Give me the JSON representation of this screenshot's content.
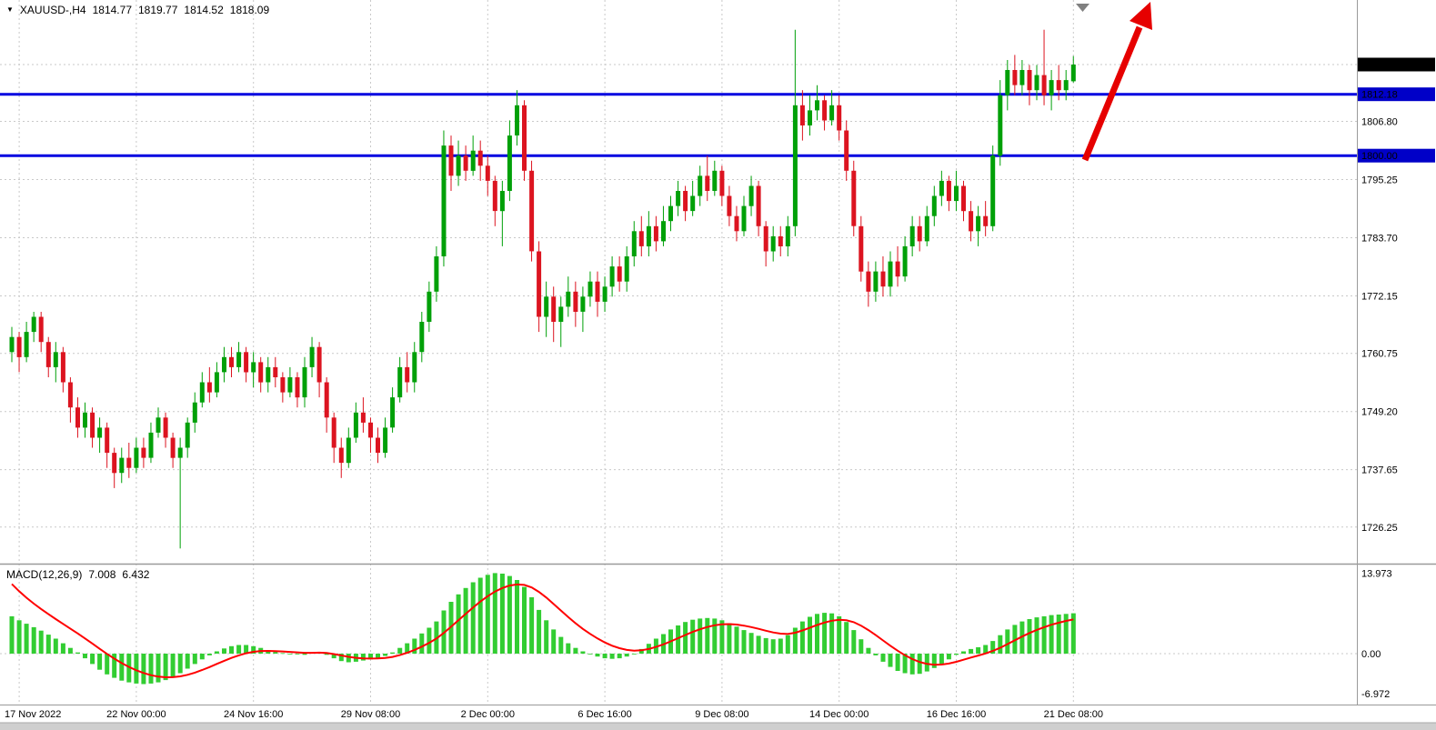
{
  "header": {
    "dropdown_icon": "▼",
    "symbol_period": "XAUUSD-,H4",
    "open": "1814.77",
    "high": "1819.77",
    "low": "1814.52",
    "close": "1818.09"
  },
  "macd_panel": {
    "label": "MACD(12,26,9)",
    "main_value": "7.008",
    "signal_value": "6.432",
    "scale_max": "13.973",
    "scale_zero": "0.00",
    "scale_min": "-6.972"
  },
  "price_axis": {
    "current": "1818.09",
    "levels": [
      "1812.18",
      "1800.00"
    ],
    "grid_labels": [
      "1806.80",
      "1795.25",
      "1783.70",
      "1772.15",
      "1760.75",
      "1749.20",
      "1737.65",
      "1726.25"
    ]
  },
  "colors": {
    "bull": "#00a008",
    "bear": "#dc1420",
    "macd_histogram": "#32cd32",
    "macd_signal": "#ff0000",
    "level_line": "#0000e0",
    "current_tag_bg": "#000000",
    "level_tag_bg": "#0000c8",
    "arrow": "#e60000",
    "grid": "#c9c9c9"
  },
  "chart_data": {
    "type": "candlestick",
    "title": "XAUUSD-,H4",
    "ohlc_header": [
      1814.77,
      1819.77,
      1814.52,
      1818.09
    ],
    "current_price": 1818.09,
    "horizontal_levels": [
      1812.18,
      1800.0
    ],
    "price_grid": [
      1806.8,
      1795.25,
      1783.7,
      1772.15,
      1760.75,
      1749.2,
      1737.65,
      1726.25
    ],
    "ylim_main": [
      1719,
      1831
    ],
    "ylim_macd": [
      -8.5,
      15.3
    ],
    "time_labels": [
      {
        "bar": 1,
        "text": "17 Nov 2022"
      },
      {
        "bar": 17,
        "text": "22 Nov 00:00"
      },
      {
        "bar": 33,
        "text": "24 Nov 16:00"
      },
      {
        "bar": 49,
        "text": "29 Nov 08:00"
      },
      {
        "bar": 65,
        "text": "2 Dec 00:00"
      },
      {
        "bar": 81,
        "text": "6 Dec 16:00"
      },
      {
        "bar": 97,
        "text": "9 Dec 08:00"
      },
      {
        "bar": 113,
        "text": "14 Dec 00:00"
      },
      {
        "bar": 129,
        "text": "16 Dec 16:00"
      },
      {
        "bar": 145,
        "text": "21 Dec 08:00"
      }
    ],
    "candles": [
      [
        1761,
        1766,
        1759,
        1764
      ],
      [
        1764,
        1765,
        1757,
        1760
      ],
      [
        1760,
        1767,
        1759,
        1765
      ],
      [
        1765,
        1769,
        1763,
        1768
      ],
      [
        1768,
        1769,
        1761,
        1763
      ],
      [
        1763,
        1764,
        1756,
        1758
      ],
      [
        1758,
        1763,
        1755,
        1761
      ],
      [
        1761,
        1762,
        1753,
        1755
      ],
      [
        1755,
        1756,
        1747,
        1750
      ],
      [
        1750,
        1752,
        1744,
        1746
      ],
      [
        1746,
        1751,
        1744,
        1749
      ],
      [
        1749,
        1750,
        1742,
        1744
      ],
      [
        1744,
        1748,
        1741,
        1746
      ],
      [
        1746,
        1747,
        1738,
        1741
      ],
      [
        1741,
        1742,
        1734,
        1737
      ],
      [
        1737,
        1742,
        1735,
        1740
      ],
      [
        1740,
        1743,
        1736,
        1738
      ],
      [
        1738,
        1744,
        1737,
        1742
      ],
      [
        1742,
        1744,
        1738,
        1740
      ],
      [
        1740,
        1747,
        1739,
        1745
      ],
      [
        1745,
        1750,
        1744,
        1748
      ],
      [
        1748,
        1749,
        1742,
        1744
      ],
      [
        1744,
        1745,
        1738,
        1740
      ],
      [
        1740,
        1744,
        1722,
        1742
      ],
      [
        1742,
        1748,
        1740,
        1747
      ],
      [
        1747,
        1753,
        1745,
        1751
      ],
      [
        1751,
        1757,
        1750,
        1755
      ],
      [
        1755,
        1758,
        1751,
        1753
      ],
      [
        1753,
        1759,
        1752,
        1757
      ],
      [
        1757,
        1762,
        1755,
        1760
      ],
      [
        1760,
        1762,
        1756,
        1758
      ],
      [
        1758,
        1763,
        1757,
        1761
      ],
      [
        1761,
        1762,
        1755,
        1757
      ],
      [
        1757,
        1761,
        1754,
        1759
      ],
      [
        1759,
        1760,
        1753,
        1755
      ],
      [
        1755,
        1760,
        1753,
        1758
      ],
      [
        1758,
        1760,
        1754,
        1756
      ],
      [
        1756,
        1757,
        1751,
        1753
      ],
      [
        1753,
        1758,
        1752,
        1756
      ],
      [
        1756,
        1757,
        1750,
        1752
      ],
      [
        1752,
        1760,
        1750,
        1758
      ],
      [
        1758,
        1764,
        1756,
        1762
      ],
      [
        1762,
        1763,
        1752,
        1755
      ],
      [
        1755,
        1756,
        1745,
        1748
      ],
      [
        1748,
        1749,
        1739,
        1742
      ],
      [
        1742,
        1744,
        1736,
        1739
      ],
      [
        1739,
        1746,
        1738,
        1744
      ],
      [
        1744,
        1751,
        1743,
        1749
      ],
      [
        1749,
        1752,
        1745,
        1747
      ],
      [
        1747,
        1748,
        1741,
        1744
      ],
      [
        1744,
        1746,
        1739,
        1741
      ],
      [
        1741,
        1748,
        1740,
        1746
      ],
      [
        1746,
        1754,
        1745,
        1752
      ],
      [
        1752,
        1760,
        1751,
        1758
      ],
      [
        1758,
        1761,
        1753,
        1755
      ],
      [
        1755,
        1763,
        1753,
        1761
      ],
      [
        1761,
        1769,
        1759,
        1767
      ],
      [
        1767,
        1775,
        1765,
        1773
      ],
      [
        1773,
        1782,
        1771,
        1780
      ],
      [
        1780,
        1805,
        1778,
        1802
      ],
      [
        1802,
        1804,
        1793,
        1796
      ],
      [
        1796,
        1803,
        1794,
        1800
      ],
      [
        1800,
        1802,
        1795,
        1797
      ],
      [
        1797,
        1804,
        1796,
        1801
      ],
      [
        1801,
        1803,
        1795,
        1798
      ],
      [
        1798,
        1800,
        1792,
        1795
      ],
      [
        1795,
        1796,
        1786,
        1789
      ],
      [
        1789,
        1795,
        1782,
        1793
      ],
      [
        1793,
        1807,
        1791,
        1804
      ],
      [
        1804,
        1813,
        1802,
        1810
      ],
      [
        1810,
        1811,
        1795,
        1797
      ],
      [
        1797,
        1799,
        1779,
        1781
      ],
      [
        1781,
        1783,
        1765,
        1768
      ],
      [
        1768,
        1775,
        1764,
        1772
      ],
      [
        1772,
        1774,
        1763,
        1767
      ],
      [
        1767,
        1772,
        1762,
        1770
      ],
      [
        1770,
        1776,
        1768,
        1773
      ],
      [
        1773,
        1775,
        1766,
        1769
      ],
      [
        1769,
        1774,
        1765,
        1772
      ],
      [
        1772,
        1777,
        1770,
        1775
      ],
      [
        1775,
        1777,
        1768,
        1771
      ],
      [
        1771,
        1776,
        1769,
        1774
      ],
      [
        1774,
        1780,
        1772,
        1778
      ],
      [
        1778,
        1780,
        1773,
        1775
      ],
      [
        1775,
        1782,
        1773,
        1780
      ],
      [
        1780,
        1787,
        1778,
        1785
      ],
      [
        1785,
        1788,
        1780,
        1782
      ],
      [
        1782,
        1789,
        1780,
        1786
      ],
      [
        1786,
        1788,
        1781,
        1783
      ],
      [
        1783,
        1790,
        1782,
        1787
      ],
      [
        1787,
        1792,
        1785,
        1790
      ],
      [
        1790,
        1795,
        1788,
        1793
      ],
      [
        1793,
        1794,
        1787,
        1789
      ],
      [
        1789,
        1795,
        1788,
        1792
      ],
      [
        1792,
        1798,
        1790,
        1796
      ],
      [
        1796,
        1800,
        1791,
        1793
      ],
      [
        1793,
        1799,
        1792,
        1797
      ],
      [
        1797,
        1798,
        1790,
        1792
      ],
      [
        1792,
        1794,
        1786,
        1788
      ],
      [
        1788,
        1790,
        1783,
        1785
      ],
      [
        1785,
        1792,
        1784,
        1790
      ],
      [
        1790,
        1796,
        1788,
        1794
      ],
      [
        1794,
        1795,
        1784,
        1786
      ],
      [
        1786,
        1787,
        1778,
        1781
      ],
      [
        1781,
        1786,
        1779,
        1784
      ],
      [
        1784,
        1786,
        1780,
        1782
      ],
      [
        1782,
        1788,
        1780,
        1786
      ],
      [
        1786,
        1825,
        1784,
        1810
      ],
      [
        1810,
        1813,
        1803,
        1806
      ],
      [
        1806,
        1812,
        1804,
        1809
      ],
      [
        1809,
        1814,
        1807,
        1811
      ],
      [
        1811,
        1812,
        1805,
        1807
      ],
      [
        1807,
        1813,
        1806,
        1810
      ],
      [
        1810,
        1812,
        1803,
        1805
      ],
      [
        1805,
        1807,
        1795,
        1797
      ],
      [
        1797,
        1799,
        1784,
        1786
      ],
      [
        1786,
        1788,
        1775,
        1777
      ],
      [
        1777,
        1779,
        1770,
        1773
      ],
      [
        1773,
        1779,
        1771,
        1777
      ],
      [
        1777,
        1780,
        1772,
        1774
      ],
      [
        1774,
        1781,
        1772,
        1779
      ],
      [
        1779,
        1782,
        1774,
        1776
      ],
      [
        1776,
        1784,
        1775,
        1782
      ],
      [
        1782,
        1788,
        1780,
        1786
      ],
      [
        1786,
        1788,
        1781,
        1783
      ],
      [
        1783,
        1790,
        1782,
        1788
      ],
      [
        1788,
        1794,
        1786,
        1792
      ],
      [
        1792,
        1797,
        1790,
        1795
      ],
      [
        1795,
        1796,
        1789,
        1791
      ],
      [
        1791,
        1797,
        1789,
        1794
      ],
      [
        1794,
        1795,
        1787,
        1789
      ],
      [
        1789,
        1791,
        1783,
        1785
      ],
      [
        1785,
        1790,
        1782,
        1788
      ],
      [
        1788,
        1791,
        1784,
        1786
      ],
      [
        1786,
        1802,
        1785,
        1800
      ],
      [
        1800,
        1815,
        1798,
        1812
      ],
      [
        1812,
        1819,
        1809,
        1817
      ],
      [
        1817,
        1820,
        1812,
        1814
      ],
      [
        1814,
        1819,
        1812,
        1817
      ],
      [
        1817,
        1818,
        1810,
        1813
      ],
      [
        1813,
        1818,
        1811,
        1816
      ],
      [
        1816,
        1825,
        1810,
        1812
      ],
      [
        1812,
        1817,
        1809,
        1815
      ],
      [
        1815,
        1818,
        1811,
        1813
      ],
      [
        1813,
        1817,
        1811,
        1815
      ],
      [
        1814.77,
        1819.77,
        1814.52,
        1818.09
      ]
    ],
    "macd": {
      "params": "12,26,9",
      "signal_seed": 13.5,
      "signal_period": 9,
      "scale": [
        13.973,
        0,
        -6.972
      ],
      "values": [
        6.5,
        5.8,
        5.2,
        4.6,
        4.0,
        3.3,
        2.6,
        1.8,
        1.0,
        0.2,
        -0.8,
        -1.8,
        -2.8,
        -3.6,
        -4.2,
        -4.7,
        -5.0,
        -5.2,
        -5.3,
        -5.2,
        -5.0,
        -4.6,
        -4.0,
        -3.4,
        -2.6,
        -1.8,
        -1.0,
        -0.3,
        0.4,
        0.9,
        1.3,
        1.5,
        1.5,
        1.3,
        1.0,
        0.6,
        0.3,
        0.1,
        0.0,
        -0.1,
        -0.2,
        0.2,
        0.3,
        -0.2,
        -0.8,
        -1.3,
        -1.5,
        -1.4,
        -1.2,
        -1.0,
        -0.8,
        -0.4,
        0.2,
        1.0,
        1.8,
        2.6,
        3.5,
        4.5,
        5.6,
        7.5,
        9.0,
        10.3,
        11.4,
        12.4,
        13.2,
        13.7,
        14.0,
        13.9,
        13.5,
        12.8,
        11.6,
        9.8,
        7.6,
        5.8,
        4.2,
        2.9,
        1.8,
        1.0,
        0.4,
        -0.1,
        -0.5,
        -0.8,
        -0.9,
        -0.8,
        -0.5,
        0.0,
        0.8,
        1.7,
        2.6,
        3.4,
        4.2,
        4.9,
        5.5,
        5.9,
        6.1,
        6.2,
        6.1,
        5.8,
        5.3,
        4.7,
        4.1,
        3.6,
        3.1,
        2.7,
        2.5,
        2.6,
        3.2,
        4.5,
        5.6,
        6.4,
        6.9,
        7.1,
        7.0,
        6.5,
        5.5,
        4.1,
        2.5,
        1.0,
        -0.3,
        -1.4,
        -2.3,
        -3.0,
        -3.4,
        -3.6,
        -3.5,
        -3.1,
        -2.5,
        -1.8,
        -1.0,
        -0.2,
        0.4,
        0.8,
        1.1,
        1.5,
        2.2,
        3.2,
        4.2,
        5.0,
        5.6,
        6.0,
        6.3,
        6.5,
        6.7,
        6.8,
        6.9,
        7.008
      ]
    }
  }
}
